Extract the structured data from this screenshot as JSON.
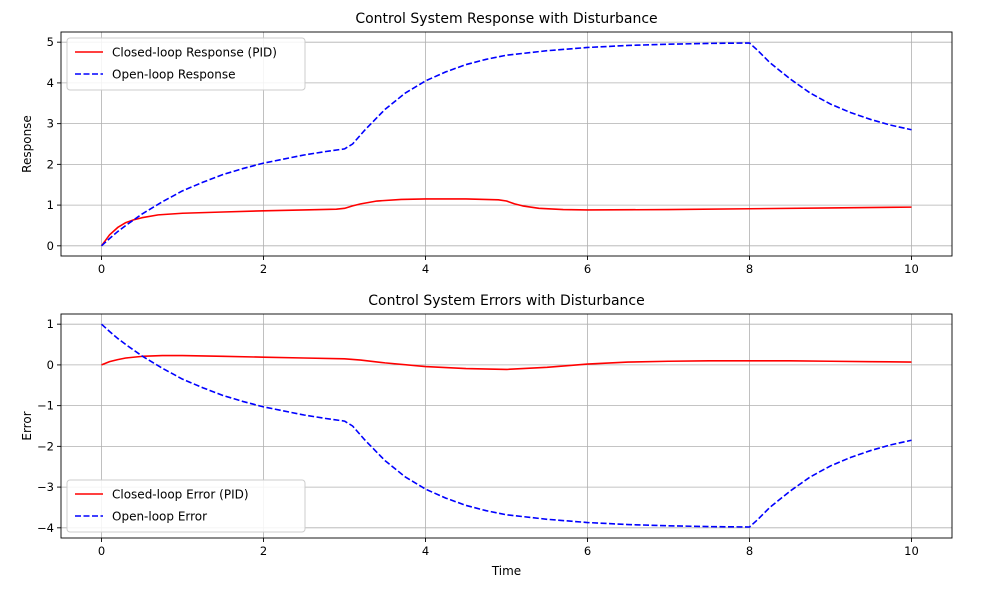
{
  "chart_data": [
    {
      "type": "line",
      "title": "Control System Response with Disturbance",
      "xlabel": "",
      "ylabel": "Response",
      "xlim": [
        -0.5,
        10.5
      ],
      "ylim": [
        -0.25,
        5.25
      ],
      "xticks": [
        0,
        2,
        4,
        6,
        8,
        10
      ],
      "yticks": [
        0,
        1,
        2,
        3,
        4,
        5
      ],
      "grid": true,
      "legend_position": "top-left",
      "series": [
        {
          "name": "Closed-loop Response (PID)",
          "color": "#ff0000",
          "style": "solid",
          "x": [
            0,
            0.1,
            0.2,
            0.3,
            0.4,
            0.5,
            0.7,
            1.0,
            1.5,
            2.0,
            2.5,
            2.9,
            3.0,
            3.1,
            3.2,
            3.4,
            3.7,
            4.0,
            4.5,
            4.9,
            5.0,
            5.1,
            5.2,
            5.4,
            5.7,
            6.0,
            7.0,
            8.0,
            9.0,
            10.0
          ],
          "y": [
            0,
            0.27,
            0.45,
            0.57,
            0.64,
            0.69,
            0.76,
            0.8,
            0.83,
            0.86,
            0.88,
            0.9,
            0.92,
            0.98,
            1.03,
            1.1,
            1.14,
            1.15,
            1.15,
            1.13,
            1.1,
            1.03,
            0.98,
            0.92,
            0.89,
            0.88,
            0.89,
            0.91,
            0.93,
            0.95
          ]
        },
        {
          "name": "Open-loop Response",
          "color": "#0000ff",
          "style": "dashed",
          "x": [
            0,
            0.1,
            0.2,
            0.3,
            0.5,
            0.75,
            1.0,
            1.25,
            1.5,
            1.75,
            2.0,
            2.25,
            2.5,
            2.75,
            3.0,
            3.1,
            3.25,
            3.5,
            3.75,
            4.0,
            4.25,
            4.5,
            4.75,
            5.0,
            5.5,
            6.0,
            6.5,
            7.0,
            7.5,
            8.0,
            8.1,
            8.25,
            8.5,
            8.75,
            9.0,
            9.25,
            9.5,
            9.75,
            10.0
          ],
          "y": [
            0,
            0.18,
            0.35,
            0.5,
            0.78,
            1.08,
            1.35,
            1.56,
            1.75,
            1.9,
            2.03,
            2.13,
            2.23,
            2.31,
            2.38,
            2.5,
            2.84,
            3.35,
            3.75,
            4.05,
            4.27,
            4.45,
            4.58,
            4.68,
            4.79,
            4.87,
            4.92,
            4.95,
            4.97,
            4.98,
            4.8,
            4.5,
            4.1,
            3.75,
            3.48,
            3.27,
            3.1,
            2.96,
            2.85
          ]
        }
      ]
    },
    {
      "type": "line",
      "title": "Control System Errors with Disturbance",
      "xlabel": "Time",
      "ylabel": "Error",
      "xlim": [
        -0.5,
        10.5
      ],
      "ylim": [
        -4.25,
        1.25
      ],
      "xticks": [
        0,
        2,
        4,
        6,
        8,
        10
      ],
      "yticks": [
        1,
        0,
        -1,
        -2,
        -3,
        -4
      ],
      "grid": true,
      "legend_position": "bottom-left",
      "series": [
        {
          "name": "Closed-loop Error (PID)",
          "color": "#ff0000",
          "style": "solid",
          "x": [
            0,
            0.1,
            0.2,
            0.3,
            0.5,
            0.75,
            1.0,
            1.5,
            2.0,
            2.5,
            3.0,
            3.2,
            3.5,
            4.0,
            4.5,
            5.0,
            5.5,
            6.0,
            6.5,
            7.0,
            7.5,
            8.0,
            8.5,
            9.0,
            9.5,
            10.0
          ],
          "y": [
            0,
            0.08,
            0.13,
            0.17,
            0.21,
            0.23,
            0.23,
            0.21,
            0.19,
            0.17,
            0.15,
            0.12,
            0.05,
            -0.04,
            -0.09,
            -0.11,
            -0.06,
            0.02,
            0.07,
            0.09,
            0.1,
            0.1,
            0.1,
            0.09,
            0.08,
            0.07
          ]
        },
        {
          "name": "Open-loop Error",
          "color": "#0000ff",
          "style": "dashed",
          "x": [
            0,
            0.1,
            0.2,
            0.3,
            0.5,
            0.75,
            1.0,
            1.25,
            1.5,
            1.75,
            2.0,
            2.25,
            2.5,
            2.75,
            3.0,
            3.1,
            3.25,
            3.5,
            3.75,
            4.0,
            4.25,
            4.5,
            4.75,
            5.0,
            5.5,
            6.0,
            6.5,
            7.0,
            7.5,
            8.0,
            8.1,
            8.25,
            8.5,
            8.75,
            9.0,
            9.25,
            9.5,
            9.75,
            10.0
          ],
          "y": [
            1.0,
            0.82,
            0.65,
            0.5,
            0.22,
            -0.08,
            -0.35,
            -0.56,
            -0.75,
            -0.9,
            -1.03,
            -1.13,
            -1.23,
            -1.31,
            -1.38,
            -1.5,
            -1.84,
            -2.35,
            -2.75,
            -3.05,
            -3.27,
            -3.45,
            -3.58,
            -3.68,
            -3.79,
            -3.87,
            -3.92,
            -3.95,
            -3.97,
            -3.98,
            -3.8,
            -3.5,
            -3.1,
            -2.75,
            -2.48,
            -2.27,
            -2.1,
            -1.96,
            -1.85
          ]
        }
      ]
    }
  ]
}
